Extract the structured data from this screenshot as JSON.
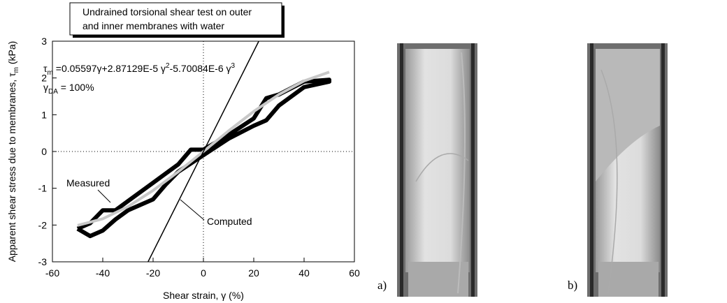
{
  "chart_data": {
    "type": "line",
    "title": [
      "Undrained torsional shear test on outer",
      "and inner membranes with water"
    ],
    "x_label": "Shear strain, γ (%)",
    "y_label": [
      "Apparent shear stress due to  membranes, τ",
      "m",
      " (kPa)"
    ],
    "equation": [
      "τ",
      "m",
      " =0.05597γ+2.87129E-5 γ",
      "2",
      "-5.70084E-6 γ",
      "3"
    ],
    "amplitude": [
      "γ",
      "DA",
      " = 100%"
    ],
    "xlim": [
      -60,
      60
    ],
    "xticks": [
      -60,
      -40,
      -20,
      0,
      20,
      40,
      60
    ],
    "ylim": [
      -3,
      3
    ],
    "yticks": [
      -3,
      -2,
      -1,
      0,
      1,
      2,
      3
    ],
    "series": [
      {
        "name": "Measured",
        "color": "#000000",
        "x": [
          -50,
          -45,
          -40,
          -35,
          -30,
          -20,
          -10,
          -5,
          0,
          10,
          20,
          25,
          30,
          40,
          50,
          50,
          40,
          30,
          25,
          20,
          10,
          0,
          -10,
          -15,
          -20,
          -30,
          -35,
          -40,
          -45,
          -50
        ],
        "values": [
          -2.1,
          -1.95,
          -1.6,
          -1.6,
          -1.35,
          -0.85,
          -0.35,
          0.05,
          0.05,
          0.45,
          0.9,
          1.45,
          1.55,
          1.9,
          1.95,
          1.9,
          1.75,
          1.25,
          0.85,
          0.7,
          0.35,
          -0.1,
          -0.55,
          -0.9,
          -1.3,
          -1.6,
          -1.85,
          -2.15,
          -2.3,
          -2.1
        ]
      },
      {
        "color": "#c8c8c8",
        "x": [
          -50,
          -40,
          -30,
          -20,
          -10,
          0,
          10,
          20,
          30,
          40,
          50
        ],
        "values": [
          -2.01,
          -1.83,
          -1.5,
          -1.06,
          -0.55,
          0,
          0.56,
          1.09,
          1.55,
          1.92,
          2.16
        ]
      },
      {
        "name": "Computed",
        "color": "#000000",
        "x": [
          -22,
          22
        ],
        "values": [
          -3,
          3
        ]
      }
    ],
    "photo_labels": [
      "a)",
      "b)"
    ]
  }
}
